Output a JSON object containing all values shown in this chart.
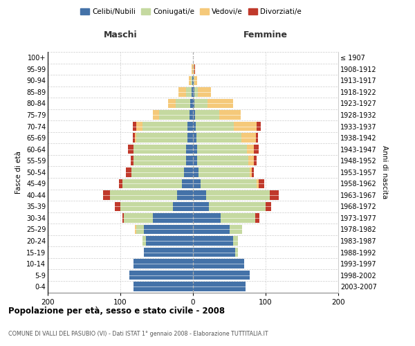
{
  "age_groups": [
    "0-4",
    "5-9",
    "10-14",
    "15-19",
    "20-24",
    "25-29",
    "30-34",
    "35-39",
    "40-44",
    "45-49",
    "50-54",
    "55-59",
    "60-64",
    "65-69",
    "70-74",
    "75-79",
    "80-84",
    "85-89",
    "90-94",
    "95-99",
    "100+"
  ],
  "birth_years": [
    "2003-2007",
    "1998-2002",
    "1993-1997",
    "1988-1992",
    "1983-1987",
    "1978-1982",
    "1973-1977",
    "1968-1972",
    "1963-1967",
    "1958-1962",
    "1953-1957",
    "1948-1952",
    "1943-1947",
    "1938-1942",
    "1933-1937",
    "1928-1932",
    "1923-1927",
    "1918-1922",
    "1913-1917",
    "1908-1912",
    "≤ 1907"
  ],
  "maschi": {
    "celibi": [
      82,
      88,
      82,
      68,
      65,
      68,
      55,
      28,
      22,
      15,
      12,
      10,
      10,
      8,
      8,
      5,
      4,
      2,
      1,
      0,
      0
    ],
    "coniugati": [
      0,
      0,
      0,
      0,
      5,
      10,
      40,
      72,
      92,
      82,
      73,
      72,
      72,
      70,
      62,
      42,
      20,
      8,
      2,
      0,
      0
    ],
    "vedovi": [
      0,
      0,
      0,
      0,
      0,
      2,
      0,
      0,
      0,
      0,
      0,
      0,
      0,
      2,
      8,
      8,
      10,
      10,
      3,
      2,
      0
    ],
    "divorziati": [
      0,
      0,
      0,
      0,
      0,
      0,
      2,
      8,
      10,
      5,
      7,
      4,
      8,
      3,
      5,
      0,
      0,
      0,
      0,
      0,
      0
    ]
  },
  "femmine": {
    "nubili": [
      72,
      78,
      70,
      58,
      55,
      50,
      38,
      22,
      18,
      10,
      8,
      6,
      6,
      5,
      4,
      3,
      2,
      2,
      1,
      0,
      0
    ],
    "coniugate": [
      0,
      0,
      0,
      4,
      7,
      18,
      48,
      78,
      88,
      78,
      70,
      70,
      68,
      62,
      52,
      33,
      18,
      5,
      1,
      0,
      0
    ],
    "vedove": [
      0,
      0,
      0,
      0,
      0,
      0,
      0,
      0,
      0,
      2,
      3,
      8,
      10,
      20,
      32,
      30,
      35,
      18,
      4,
      2,
      0
    ],
    "divorziate": [
      0,
      0,
      0,
      0,
      0,
      0,
      5,
      8,
      12,
      8,
      3,
      4,
      6,
      3,
      5,
      0,
      0,
      0,
      0,
      1,
      0
    ]
  },
  "colors": {
    "celibi_nubili": "#4472a8",
    "coniugati": "#c5d9a0",
    "vedovi": "#f5c97a",
    "divorziati": "#c0392b"
  },
  "xlim": 200,
  "title": "Popolazione per età, sesso e stato civile - 2008",
  "subtitle": "COMUNE DI VALLI DEL PASUBIO (VI) - Dati ISTAT 1° gennaio 2008 - Elaborazione TUTTITALIA.IT",
  "ylabel_left": "Fasce di età",
  "ylabel_right": "Anni di nascita",
  "legend_labels": [
    "Celibi/Nubili",
    "Coniugati/e",
    "Vedovi/e",
    "Divorziati/e"
  ]
}
